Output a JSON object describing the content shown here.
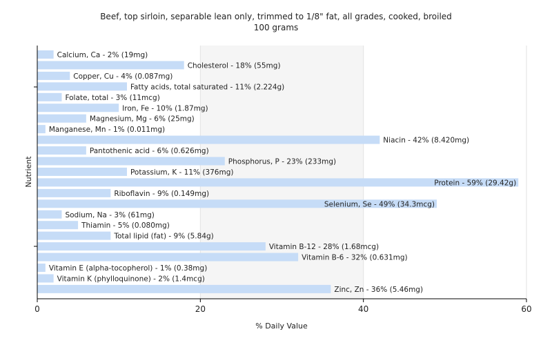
{
  "chart_data": {
    "type": "bar",
    "orientation": "horizontal",
    "title": "Beef, top sirloin, separable lean only, trimmed to 1/8\" fat, all grades, cooked, broiled",
    "subtitle": "100 grams",
    "xlabel": "% Daily Value",
    "ylabel": "Nutrient",
    "xlim": [
      0,
      60
    ],
    "xticks": [
      0,
      20,
      40,
      60
    ],
    "grid": true,
    "bar_color": "#c6dcf7",
    "categories": [
      "Calcium, Ca",
      "Cholesterol",
      "Copper, Cu",
      "Fatty acids, total saturated",
      "Folate, total",
      "Iron, Fe",
      "Magnesium, Mg",
      "Manganese, Mn",
      "Niacin",
      "Pantothenic acid",
      "Phosphorus, P",
      "Potassium, K",
      "Protein",
      "Riboflavin",
      "Selenium, Se",
      "Sodium, Na",
      "Thiamin",
      "Total lipid (fat)",
      "Vitamin B-12",
      "Vitamin B-6",
      "Vitamin E (alpha-tocopherol)",
      "Vitamin K (phylloquinone)",
      "Zinc, Zn"
    ],
    "values": [
      2,
      18,
      4,
      11,
      3,
      10,
      6,
      1,
      42,
      6,
      23,
      11,
      59,
      9,
      49,
      3,
      5,
      9,
      28,
      32,
      1,
      2,
      36
    ],
    "labels": [
      "Calcium, Ca - 2% (19mg)",
      "Cholesterol - 18% (55mg)",
      "Copper, Cu - 4% (0.087mg)",
      "Fatty acids, total saturated - 11% (2.224g)",
      "Folate, total - 3% (11mcg)",
      "Iron, Fe - 10% (1.87mg)",
      "Magnesium, Mg - 6% (25mg)",
      "Manganese, Mn - 1% (0.011mg)",
      "Niacin - 42% (8.420mg)",
      "Pantothenic acid - 6% (0.626mg)",
      "Phosphorus, P - 23% (233mg)",
      "Potassium, K - 11% (376mg)",
      "Protein - 59% (29.42g)",
      "Riboflavin - 9% (0.149mg)",
      "Selenium, Se - 49% (34.3mcg)",
      "Sodium, Na - 3% (61mg)",
      "Thiamin - 5% (0.080mg)",
      "Total lipid (fat) - 9% (5.84g)",
      "Vitamin B-12 - 28% (1.68mcg)",
      "Vitamin B-6 - 32% (0.631mg)",
      "Vitamin E (alpha-tocopherol) - 1% (0.38mg)",
      "Vitamin K (phylloquinone) - 2% (1.4mcg)",
      "Zinc, Zn - 36% (5.46mg)"
    ]
  }
}
